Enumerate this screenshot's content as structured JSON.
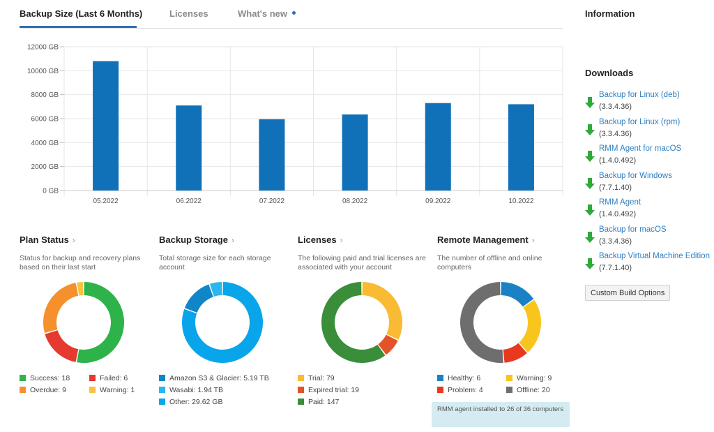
{
  "tabs": [
    {
      "label": "Backup Size (Last 6 Months)",
      "active": true
    },
    {
      "label": "Licenses",
      "active": false
    },
    {
      "label": "What's new",
      "active": false,
      "has_dot": true
    }
  ],
  "chart_data": {
    "type": "bar",
    "categories": [
      "05.2022",
      "06.2022",
      "07.2022",
      "08.2022",
      "09.2022",
      "10.2022"
    ],
    "values": [
      10800,
      7100,
      5950,
      6350,
      7300,
      7200
    ],
    "ylim": [
      0,
      12000
    ],
    "yticks": [
      "0 GB",
      "2000 GB",
      "4000 GB",
      "6000 GB",
      "8000 GB",
      "10000 GB",
      "12000 GB"
    ],
    "ytick_values": [
      0,
      2000,
      4000,
      6000,
      8000,
      10000,
      12000
    ],
    "bar_color": "#1070b8",
    "grid": true,
    "title": "",
    "xlabel": "",
    "ylabel": ""
  },
  "panels": {
    "plan_status": {
      "title": "Plan Status",
      "chevron": "›",
      "description": "Status for backup and recovery plans based on their last start",
      "donut": [
        {
          "label": "Success",
          "value": 18,
          "color": "#2db34a"
        },
        {
          "label": "Failed",
          "value": 6,
          "color": "#e53a2f"
        },
        {
          "label": "Overdue",
          "value": 9,
          "color": "#f6902c"
        },
        {
          "label": "Warning",
          "value": 1,
          "color": "#f6c343"
        }
      ],
      "legend": [
        "Success: 18",
        "Failed: 6",
        "Overdue: 9",
        "Warning: 1"
      ]
    },
    "backup_storage": {
      "title": "Backup Storage",
      "chevron": "›",
      "description": "Total storage size for each storage account",
      "donut": [
        {
          "label": "Other",
          "value": 29.62,
          "color": "#08a5ea"
        },
        {
          "label": "Amazon S3 & Glacier",
          "value": 5.19,
          "color": "#0f86c8"
        },
        {
          "label": "Wasabi",
          "value": 1.94,
          "color": "#2ab6ee"
        }
      ],
      "legend": [
        "Amazon S3 & Glacier: 5.19 TB",
        "Wasabi: 1.94 TB",
        "Other: 29.62 GB"
      ],
      "legend_colors": [
        "#0f86c8",
        "#2ab6ee",
        "#08a5ea"
      ]
    },
    "licenses": {
      "title": "Licenses",
      "chevron": "›",
      "description": "The following paid and trial licenses are associated with your account",
      "donut": [
        {
          "label": "Trial",
          "value": 79,
          "color": "#f8bb33"
        },
        {
          "label": "Expired trial",
          "value": 19,
          "color": "#e45327"
        },
        {
          "label": "Paid",
          "value": 147,
          "color": "#3a8e3a"
        }
      ],
      "legend": [
        "Trial: 79",
        "Expired trial: 19",
        "Paid: 147"
      ]
    },
    "remote_management": {
      "title": "Remote Management",
      "chevron": "›",
      "description": "The number of offline and online computers",
      "donut": [
        {
          "label": "Healthy",
          "value": 6,
          "color": "#1a82c4"
        },
        {
          "label": "Warning",
          "value": 9,
          "color": "#f8c51c"
        },
        {
          "label": "Problem",
          "value": 4,
          "color": "#e8391f"
        },
        {
          "label": "Offline",
          "value": 20,
          "color": "#6e6e6e"
        }
      ],
      "legend": [
        "Healthy: 6",
        "Warning: 9",
        "Problem: 4",
        "Offline: 20"
      ],
      "note": "RMM agent installed to 26 of 36 computers"
    }
  },
  "sidebar": {
    "information_heading": "Information",
    "downloads_heading": "Downloads",
    "downloads_icon": "download-arrow-icon",
    "downloads_icon_color": "#2eaa3a",
    "downloads": [
      {
        "name": "Backup for Linux (deb)",
        "version": "(3.3.4.36)"
      },
      {
        "name": "Backup for Linux (rpm)",
        "version": "(3.3.4.36)"
      },
      {
        "name": "RMM Agent for macOS",
        "version": "(1.4.0.492)"
      },
      {
        "name": "Backup for Windows",
        "version": "(7.7.1.40)"
      },
      {
        "name": "RMM Agent",
        "version": "(1.4.0.492)"
      },
      {
        "name": "Backup for macOS",
        "version": "(3.3.4.36)"
      },
      {
        "name": "Backup Virtual Machine Edition",
        "version": "(7.7.1.40)"
      }
    ],
    "custom_build_label": "Custom Build Options"
  }
}
